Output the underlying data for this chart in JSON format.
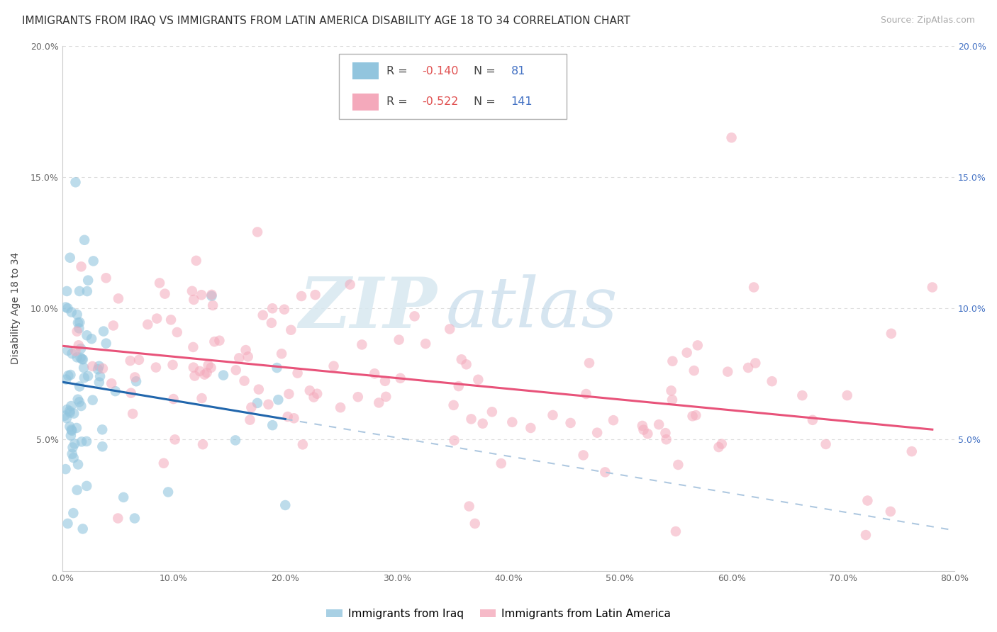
{
  "title": "IMMIGRANTS FROM IRAQ VS IMMIGRANTS FROM LATIN AMERICA DISABILITY AGE 18 TO 34 CORRELATION CHART",
  "source": "Source: ZipAtlas.com",
  "ylabel": "Disability Age 18 to 34",
  "iraq_R": -0.14,
  "iraq_N": 81,
  "latam_R": -0.522,
  "latam_N": 141,
  "iraq_color": "#92c5de",
  "latam_color": "#f4a9bb",
  "iraq_line_color": "#2166ac",
  "latam_line_color": "#e8537a",
  "dash_color": "#aec8e0",
  "xlim": [
    0.0,
    0.8
  ],
  "ylim": [
    0.0,
    0.2
  ],
  "xticks": [
    0.0,
    0.1,
    0.2,
    0.3,
    0.4,
    0.5,
    0.6,
    0.7,
    0.8
  ],
  "yticks": [
    0.0,
    0.05,
    0.1,
    0.15,
    0.2
  ],
  "xticklabels": [
    "0.0%",
    "10.0%",
    "20.0%",
    "30.0%",
    "40.0%",
    "50.0%",
    "60.0%",
    "70.0%",
    "80.0%"
  ],
  "yticklabels": [
    "",
    "5.0%",
    "10.0%",
    "15.0%",
    "20.0%"
  ],
  "right_yticklabels": [
    "",
    "5.0%",
    "10.0%",
    "15.0%",
    "20.0%"
  ],
  "background_color": "#ffffff",
  "grid_color": "#dddddd",
  "watermark_zip": "ZIP",
  "watermark_atlas": "atlas",
  "title_fontsize": 11,
  "source_fontsize": 9,
  "axis_fontsize": 10,
  "tick_fontsize": 9,
  "legend_R_color": "#e05050",
  "legend_N_color": "#4472c4",
  "legend_label_color": "#444444"
}
